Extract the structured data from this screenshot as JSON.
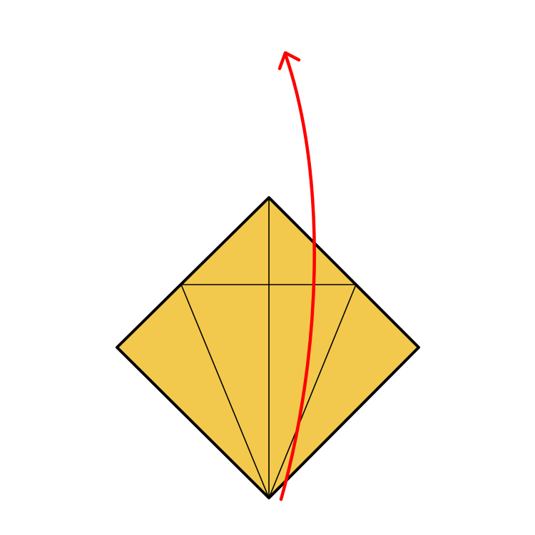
{
  "diagram": {
    "type": "origami-fold-step",
    "paper": {
      "shape": "square-diamond",
      "fill_color": "#F2C94C",
      "outline_color": "#000000"
    },
    "crease_lines": [
      "vertical-center-crease",
      "horizontal-crease",
      "left-diagonal-crease",
      "right-diagonal-crease"
    ],
    "fold_arrow": {
      "color": "#FF0000",
      "direction": "bottom-to-top",
      "icon": "curved-fold-arrow"
    }
  }
}
